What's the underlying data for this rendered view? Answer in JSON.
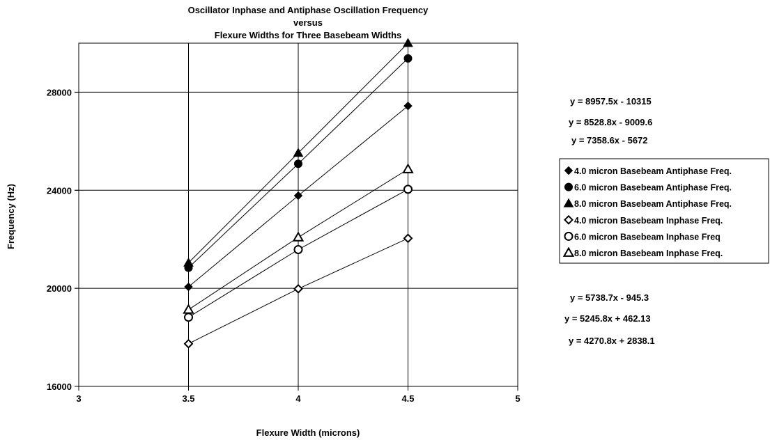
{
  "chart_data": {
    "type": "line",
    "title": [
      "Oscillator Inphase and Antiphase Oscillation Frequency",
      "versus",
      "Flexure Widths for Three Basebeam Widths"
    ],
    "xlabel": "Flexure Width (microns)",
    "ylabel": "Frequency (Hz)",
    "xlim": [
      3,
      5
    ],
    "ylim": [
      16000,
      30000
    ],
    "x_ticks": [
      "3",
      "3.5",
      "4",
      "4.5",
      "5"
    ],
    "y_ticks": [
      "16000",
      "20000",
      "24000",
      "28000"
    ],
    "grid": true,
    "legend_position": "right",
    "x": [
      3.5,
      4,
      4.5
    ],
    "series": [
      {
        "name": "4.0 micron Basebeam Antiphase Freq.",
        "marker": "diamond",
        "filled": true,
        "values": [
          20060,
          23780,
          27440
        ]
      },
      {
        "name": "6.0 micron Basebeam Antiphase Freq.",
        "marker": "circle",
        "filled": true,
        "values": [
          20840,
          25080,
          29380
        ]
      },
      {
        "name": "8.0 micron Basebeam Antiphase Freq.",
        "marker": "triangle",
        "filled": true,
        "values": [
          21040,
          25520,
          30000
        ]
      },
      {
        "name": "4.0 micron Basebeam Inphase Freq.",
        "marker": "diamond",
        "filled": false,
        "values": [
          17740,
          19980,
          22040
        ]
      },
      {
        "name": "6.0 micron Basebeam Inphase Freq",
        "marker": "circle",
        "filled": false,
        "values": [
          18820,
          21580,
          24040
        ]
      },
      {
        "name": "8.0 micron Basebeam Inphase Freq.",
        "marker": "triangle",
        "filled": false,
        "values": [
          19130,
          22080,
          24860
        ]
      }
    ],
    "annotations_top": [
      "y = 8957.5x - 10315",
      "y = 8528.8x - 9009.6",
      "y = 7358.6x - 5672"
    ],
    "annotations_bottom": [
      "y = 5738.7x - 945.3",
      "y = 5245.8x + 462.13",
      "y = 4270.8x + 2838.1"
    ]
  }
}
